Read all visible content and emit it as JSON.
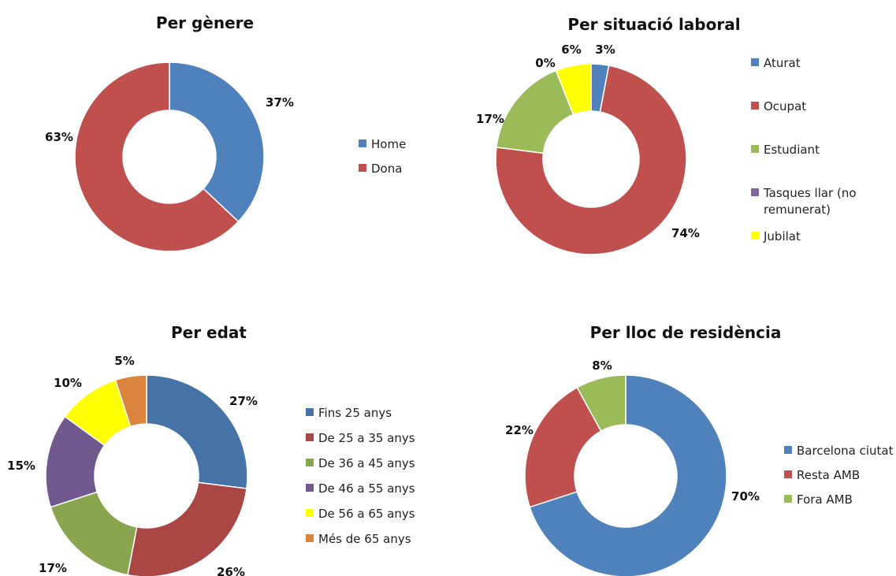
{
  "chart_data": [
    {
      "type": "pie",
      "title": "Per gènere",
      "categories": [
        "Home",
        "Dona"
      ],
      "values": [
        37,
        63
      ],
      "labels": [
        "37%",
        "63%"
      ],
      "colors": [
        "#4f81bd",
        "#c0504d"
      ],
      "legend": "right"
    },
    {
      "type": "pie",
      "title": "Per situació laboral",
      "categories": [
        "Aturat",
        "Ocupat",
        "Estudiant",
        "Tasques llar (no remunerat)",
        "Jubilat"
      ],
      "legend_lines": [
        [
          "Aturat"
        ],
        [
          "Ocupat"
        ],
        [
          "Estudiant"
        ],
        [
          "Tasques llar (no",
          "remunerat)"
        ],
        [
          "Jubilat"
        ]
      ],
      "values": [
        3,
        74,
        17,
        0,
        6
      ],
      "labels": [
        "3%",
        "74%",
        "17%",
        "0%",
        "6%"
      ],
      "colors": [
        "#4f81bd",
        "#c0504d",
        "#9bbb59",
        "#8064a2",
        "#ffff00"
      ],
      "legend": "right"
    },
    {
      "type": "pie",
      "title": "Per edat",
      "categories": [
        "Fins 25 anys",
        "De 25 a 35 anys",
        "De 36 a 45 anys",
        "De 46 a 55 anys",
        "De 56 a 65 anys",
        "Més de 65 anys"
      ],
      "values": [
        27,
        26,
        17,
        15,
        10,
        5
      ],
      "labels": [
        "27%",
        "26%",
        "17%",
        "15%",
        "10%",
        "5%"
      ],
      "colors": [
        "#4572a7",
        "#aa4643",
        "#89a54e",
        "#71588f",
        "#ffff00",
        "#db843d"
      ],
      "legend": "right"
    },
    {
      "type": "pie",
      "title": "Per lloc de residència",
      "categories": [
        "Barcelona ciutat",
        "Resta AMB",
        "Fora AMB"
      ],
      "values": [
        70,
        22,
        8
      ],
      "labels": [
        "70%",
        "22%",
        "8%"
      ],
      "colors": [
        "#4f81bd",
        "#c0504d",
        "#9bbb59"
      ],
      "legend": "right"
    }
  ]
}
